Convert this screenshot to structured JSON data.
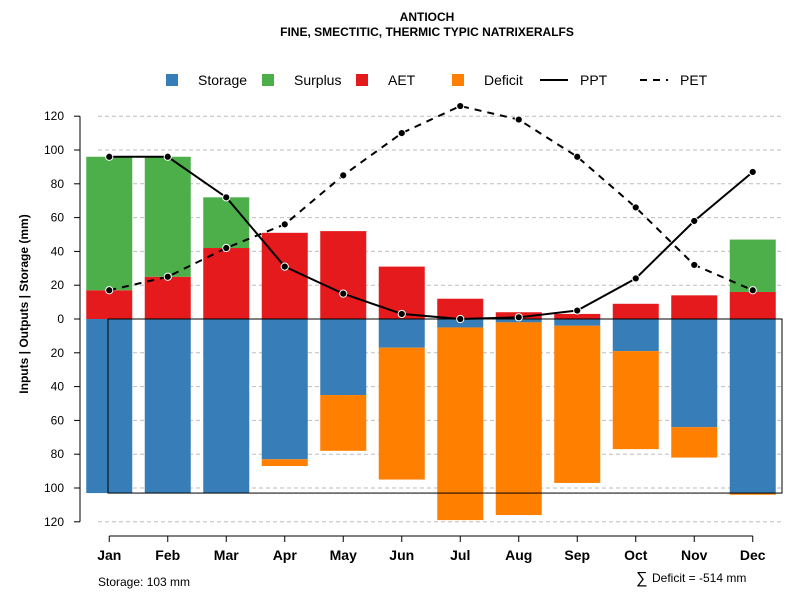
{
  "colors": {
    "storage": "#377eb8",
    "surplus": "#4daf4a",
    "aet": "#e41a1c",
    "deficit": "#ff7f00",
    "line": "#000000",
    "grid": "#bebebe"
  },
  "chart_data": {
    "type": "bar",
    "title": "ANTIOCH",
    "subtitle": "FINE, SMECTITIC, THERMIC TYPIC NATRIXERALFS",
    "ylabel": "Inputs | Outputs | Storage    (mm)",
    "ylim": [
      -120,
      130
    ],
    "yticks": [
      120,
      100,
      80,
      60,
      40,
      20,
      0,
      -20,
      -40,
      -60,
      -80,
      -100,
      -120
    ],
    "ytick_labels": [
      "120",
      "100",
      "80",
      "60",
      "40",
      "20",
      "0",
      "20",
      "40",
      "60",
      "80",
      "100",
      "120"
    ],
    "grid": true,
    "legend_position": "top",
    "legend": [
      {
        "key": "storage",
        "label": "Storage",
        "kind": "box"
      },
      {
        "key": "surplus",
        "label": "Surplus",
        "kind": "box"
      },
      {
        "key": "aet",
        "label": "AET",
        "kind": "box"
      },
      {
        "key": "deficit",
        "label": "Deficit",
        "kind": "box"
      },
      {
        "key": "ppt",
        "label": "PPT",
        "kind": "solid"
      },
      {
        "key": "pet",
        "label": "PET",
        "kind": "dashed"
      }
    ],
    "categories": [
      "Jan",
      "Feb",
      "Mar",
      "Apr",
      "May",
      "Jun",
      "Jul",
      "Aug",
      "Sep",
      "Oct",
      "Nov",
      "Dec"
    ],
    "series": [
      {
        "name": "AET",
        "values": [
          17,
          25,
          42,
          51,
          52,
          31,
          12,
          4,
          3,
          9,
          14,
          16
        ]
      },
      {
        "name": "Surplus",
        "values": [
          79,
          71,
          30,
          0,
          0,
          0,
          0,
          0,
          0,
          0,
          0,
          31
        ]
      },
      {
        "name": "Storage",
        "values": [
          103,
          103,
          103,
          83,
          45,
          17,
          5,
          2,
          4,
          19,
          64,
          103
        ]
      },
      {
        "name": "Deficit",
        "values": [
          0,
          0,
          0,
          4,
          33,
          78,
          114,
          114,
          93,
          58,
          18,
          1
        ]
      },
      {
        "name": "PPT",
        "values": [
          96,
          96,
          72,
          31,
          15,
          3,
          0,
          1,
          5,
          24,
          58,
          87
        ]
      },
      {
        "name": "PET",
        "values": [
          17,
          25,
          42,
          56,
          85,
          110,
          126,
          118,
          96,
          66,
          32,
          17
        ]
      }
    ],
    "storage_capacity": 103
  },
  "footer": {
    "storage_label": "Storage: 103 mm",
    "deficit_label": "Deficit = -514 mm",
    "sigma": "∑"
  }
}
